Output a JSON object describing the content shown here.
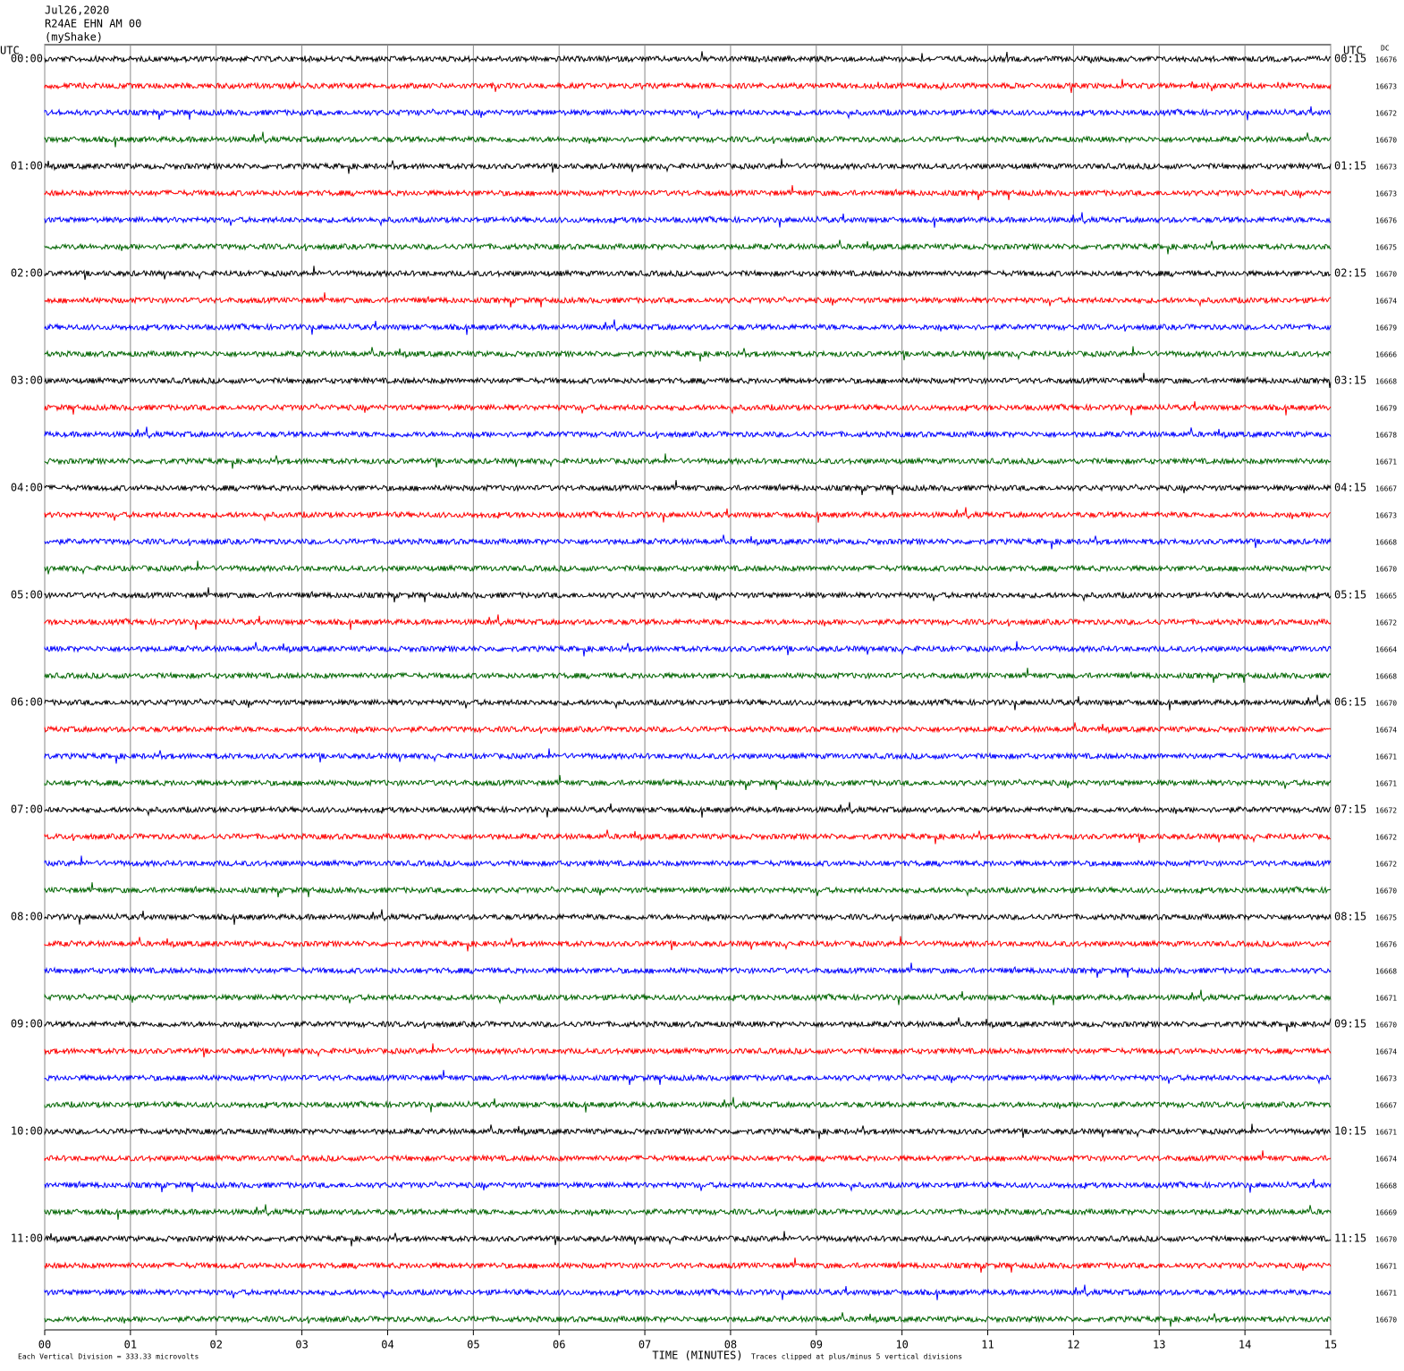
{
  "chart_data": {
    "type": "helicorder",
    "title": "Jul26,2020",
    "subtitle": "R24AE EHN AM 00",
    "source": "(myShake)",
    "left_axis_title": "UTC",
    "right_axis_title": "UTC",
    "dc_title": "DC",
    "xlabel": "TIME (MINUTES)",
    "scale_note": "Each Vertical Division =  333.33 microvolts",
    "clip_note": "Traces clipped at plus/minus 5 vertical divisions",
    "xlim": [
      0,
      15
    ],
    "xticks": [
      {
        "value": 0,
        "label": "00"
      },
      {
        "value": 1,
        "label": "01"
      },
      {
        "value": 2,
        "label": "02"
      },
      {
        "value": 3,
        "label": "03"
      },
      {
        "value": 4,
        "label": "04"
      },
      {
        "value": 5,
        "label": "05"
      },
      {
        "value": 6,
        "label": "06"
      },
      {
        "value": 7,
        "label": "07"
      },
      {
        "value": 8,
        "label": "08"
      },
      {
        "value": 9,
        "label": "09"
      },
      10,
      11,
      12,
      13,
      14,
      15
    ],
    "trace_colors": [
      "#000000",
      "#ff0000",
      "#0000ff",
      "#006400"
    ],
    "left_labels": [
      "00:00",
      "01:00",
      "02:00",
      "03:00",
      "04:00",
      "05:00",
      "06:00",
      "07:00",
      "08:00",
      "09:00",
      "10:00",
      "11:00"
    ],
    "right_labels": [
      "00:15",
      "01:15",
      "02:15",
      "03:15",
      "04:15",
      "05:15",
      "06:15",
      "07:15",
      "08:15",
      "09:15",
      "10:15",
      "11:15"
    ],
    "dc": [
      16676,
      16673,
      16672,
      16670,
      16673,
      16673,
      16676,
      16675,
      16670,
      16674,
      16679,
      16666,
      16668,
      16679,
      16678,
      16671,
      16667,
      16673,
      16668,
      16670,
      16665,
      16672,
      16664,
      16668,
      16670,
      16674,
      16671,
      16671,
      16672,
      16672,
      16672,
      16670,
      16675,
      16676,
      16668,
      16671,
      16670,
      16674,
      16673,
      16667,
      16671,
      16674,
      16668,
      16669,
      16670,
      16671,
      16671,
      16670
    ]
  }
}
